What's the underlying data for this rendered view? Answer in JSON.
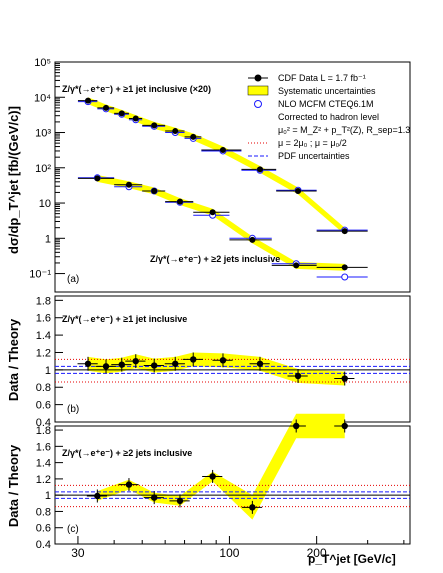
{
  "chart_data": [
    {
      "type": "scatter",
      "panel_label": "(a)",
      "ylabel": "dσ/dp_T^jet [fb/(GeV/c)]",
      "y_scale": "log",
      "ylim": [
        0.03,
        100000
      ],
      "xlim": [
        25,
        420
      ],
      "x_scale": "log",
      "annotations": [
        "Z/γ*(→e⁺e⁻) + ≥1 jet inclusive (×20)",
        "Z/γ*(→e⁺e⁻) + ≥2 jets inclusive"
      ],
      "legend": {
        "placement": "top-right",
        "entries": [
          "CDF Data  L = 1.7 fb⁻¹",
          "Systematic uncertainties",
          "NLO MCFM CTEQ6.1M",
          "Corrected to hadron level",
          "μ₀² = M_Z² + p_T²(Z), R_sep=1.3",
          "μ = 2μ₀ ; μ = μ₀/2",
          "PDF uncertainties"
        ]
      },
      "series": [
        {
          "name": "Z + ≥1 jet (×20)",
          "bins": [
            [
              30,
              35
            ],
            [
              35,
              40
            ],
            [
              40,
              45
            ],
            [
              45,
              50
            ],
            [
              50,
              60
            ],
            [
              60,
              70
            ],
            [
              70,
              80
            ],
            [
              80,
              110
            ],
            [
              110,
              145
            ],
            [
              145,
              200
            ],
            [
              200,
              300
            ]
          ],
          "data": [
            8000,
            5000,
            3500,
            2500,
            1600,
            1100,
            750,
            320,
            90,
            22,
            1.6
          ],
          "theory": [
            7500,
            4700,
            3300,
            2300,
            1500,
            1000,
            680,
            300,
            85,
            23,
            1.7
          ]
        },
        {
          "name": "Z + ≥2 jets",
          "bins": [
            [
              30,
              40
            ],
            [
              40,
              50
            ],
            [
              50,
              60
            ],
            [
              60,
              75
            ],
            [
              75,
              100
            ],
            [
              100,
              140
            ],
            [
              140,
              200
            ],
            [
              200,
              300
            ]
          ],
          "data": [
            50,
            33,
            22,
            11,
            5.5,
            0.9,
            0.17,
            0.15
          ],
          "theory": [
            52,
            29,
            22,
            10.5,
            4.5,
            1.0,
            0.19,
            0.08
          ]
        }
      ]
    },
    {
      "type": "scatter",
      "panel_label": "(b)",
      "ylabel": "Data / Theory",
      "annotation": "Z/γ*(→e⁺e⁻) + ≥1 jet inclusive",
      "ylim": [
        0.4,
        1.85
      ],
      "yticks": [
        0.4,
        0.6,
        0.8,
        1,
        1.2,
        1.4,
        1.6,
        1.8
      ],
      "x": [
        32.5,
        37.5,
        42.5,
        47.5,
        55,
        65,
        75,
        95,
        127.5,
        172.5,
        250
      ],
      "values": [
        1.07,
        1.04,
        1.06,
        1.1,
        1.05,
        1.07,
        1.12,
        1.11,
        1.07,
        0.93,
        0.9
      ]
    },
    {
      "type": "scatter",
      "panel_label": "(c)",
      "ylabel": "Data / Theory",
      "annotation": "Z/γ*(→e⁺e⁻) + ≥2 jets inclusive",
      "ylim": [
        0.4,
        1.85
      ],
      "yticks": [
        0.4,
        0.6,
        0.8,
        1,
        1.2,
        1.4,
        1.6,
        1.8
      ],
      "x": [
        35,
        45,
        55,
        67.5,
        87.5,
        120,
        170,
        250
      ],
      "values": [
        0.99,
        1.13,
        0.97,
        0.93,
        1.23,
        0.85,
        1.85,
        1.85
      ],
      "xlabel": "p_T^jet [GeV/c]",
      "xtick_labels": [
        "30",
        "100",
        "200"
      ]
    }
  ]
}
